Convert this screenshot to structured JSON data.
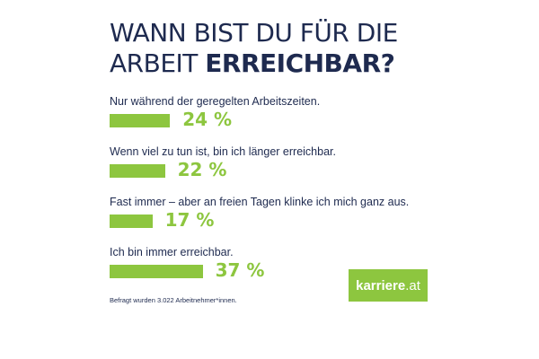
{
  "title": {
    "line1": "WANN BIST DU FÜR DIE",
    "line2_regular": "ARBEIT ",
    "line2_bold": "ERREICHBAR?"
  },
  "colors": {
    "navy": "#1e2a4f",
    "green": "#8dc63f"
  },
  "chart_data": {
    "type": "bar",
    "orientation": "horizontal",
    "categories": [
      "Nur während der geregelten Arbeitszeiten.",
      "Wenn viel zu tun ist, bin ich länger erreichbar.",
      "Fast immer – aber an freien Tagen klinke ich mich ganz aus.",
      "Ich bin immer erreichbar."
    ],
    "values": [
      24,
      22,
      17,
      37
    ],
    "value_labels": [
      "24 %",
      "22 %",
      "17 %",
      "37 %"
    ],
    "xlim": [
      0,
      100
    ],
    "grid": false,
    "legend": "none"
  },
  "footnote": "Befragt wurden 3.022 Arbeitnehmer*innen.",
  "logo": {
    "name": "karriere",
    "suffix": ".at"
  }
}
